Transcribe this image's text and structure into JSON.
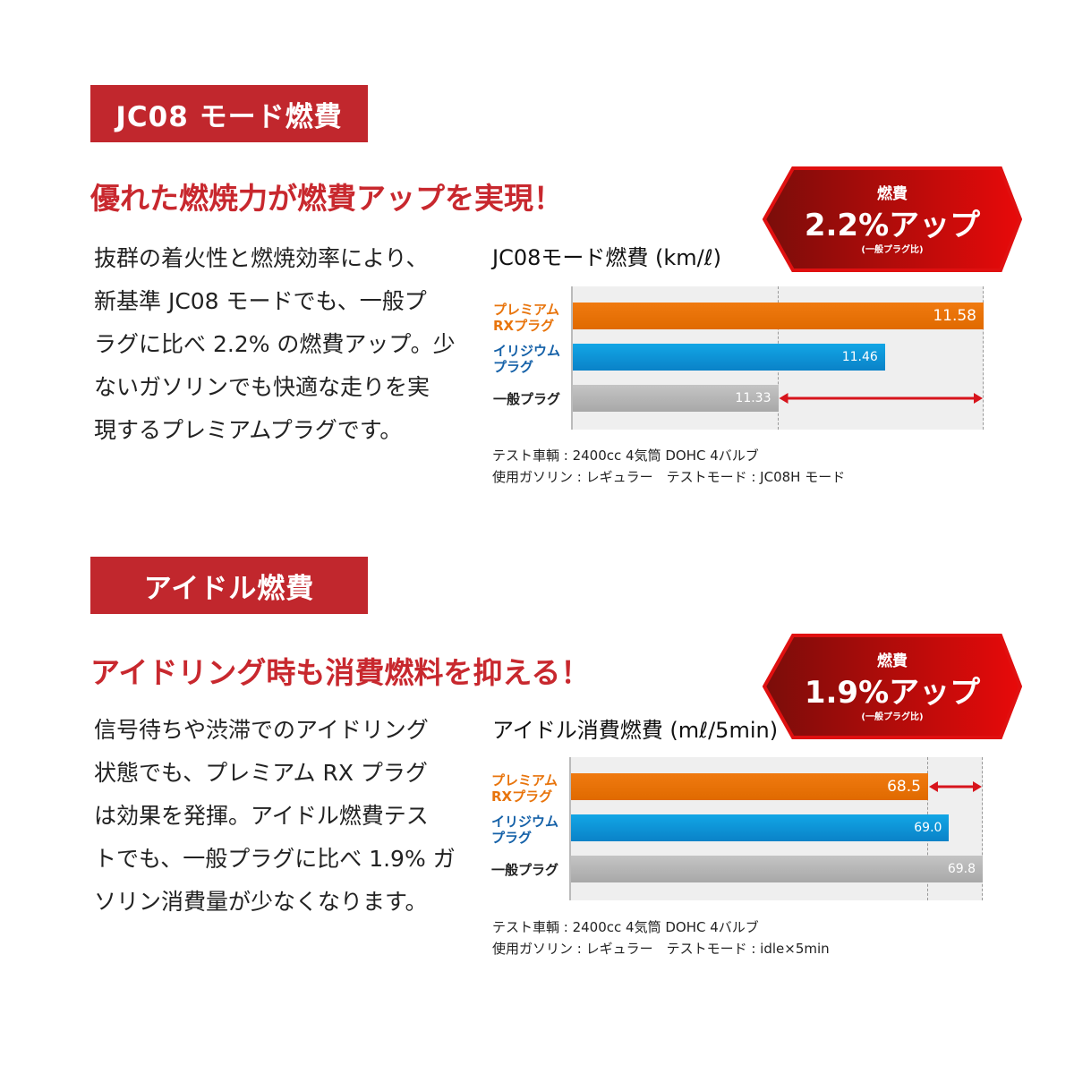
{
  "section1": {
    "tag": "JC08 モード燃費",
    "headline": "優れた燃焼力が燃費アップを実現！",
    "body_lines": [
      "抜群の着火性と燃焼効率により、",
      "新基準 JC08 モードでも、一般プ",
      "ラグに比べ 2.2% の燃費アップ。少",
      "ないガソリンでも快適な走りを実",
      "現するプレミアムプラグです。"
    ],
    "badge": {
      "top": "燃費",
      "main": "2.2%アップ",
      "sub": "(一般プラグ比)"
    },
    "notes": [
      "テスト車輌 : 2400cc 4気筒 DOHC 4バルブ",
      "使用ガソリン : レギュラー　テストモード : JC08H モード"
    ]
  },
  "section2": {
    "tag": "アイドル燃費",
    "headline": "アイドリング時も消費燃料を抑える！",
    "body_lines": [
      "信号待ちや渋滞でのアイドリング",
      "状態でも、プレミアム RX プラグ",
      "は効果を発揮。アイドル燃費テス",
      "トでも、一般プラグに比べ 1.9% ガ",
      "ソリン消費量が少なくなります。"
    ],
    "badge": {
      "top": "燃費",
      "main": "1.9%アップ",
      "sub": "(一般プラグ比)"
    },
    "notes": [
      "テスト車輌 : 2400cc 4気筒 DOHC 4バルブ",
      "使用ガソリン : レギュラー　テストモード : idle×5min"
    ]
  },
  "colors": {
    "accent": "#c1272d",
    "premium": "#e8740c",
    "iridium": "#0a9ad9",
    "standard": "#b5b5b5",
    "arrow": "#d7141c"
  },
  "chart_data": [
    {
      "type": "bar",
      "orientation": "horizontal",
      "title": "JC08モード燃費 (km/ℓ)",
      "categories": [
        "プレミアム RXプラグ",
        "イリジウム プラグ",
        "一般プラグ"
      ],
      "values": [
        11.58,
        11.46,
        11.33
      ],
      "value_labels": [
        "11.58",
        "11.46",
        "11.33"
      ],
      "xlim": [
        11.08,
        11.58
      ],
      "arrow_between": [
        11.33,
        11.58
      ]
    },
    {
      "type": "bar",
      "orientation": "horizontal",
      "title": "アイドル消費燃費 (mℓ/5min)",
      "categories": [
        "プレミアム RXプラグ",
        "イリジウム プラグ",
        "一般プラグ"
      ],
      "values": [
        68.5,
        69.0,
        69.8
      ],
      "value_labels": [
        "68.5",
        "69.0",
        "69.8"
      ],
      "xlim": [
        60.0,
        69.8
      ],
      "arrow_between": [
        68.5,
        69.8
      ]
    }
  ]
}
